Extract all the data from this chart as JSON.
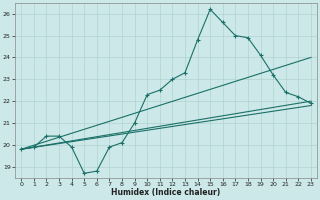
{
  "xlabel": "Humidex (Indice chaleur)",
  "xlim": [
    -0.5,
    23.5
  ],
  "ylim": [
    18.5,
    26.5
  ],
  "yticks": [
    19,
    20,
    21,
    22,
    23,
    24,
    25,
    26
  ],
  "xticks": [
    0,
    1,
    2,
    3,
    4,
    5,
    6,
    7,
    8,
    9,
    10,
    11,
    12,
    13,
    14,
    15,
    16,
    17,
    18,
    19,
    20,
    21,
    22,
    23
  ],
  "background_color": "#cce8e8",
  "grid_color": "#aacccc",
  "line_color": "#1a7068",
  "jagged_x": [
    0,
    1,
    2,
    3,
    4,
    5,
    6,
    7,
    8,
    9,
    10,
    11,
    12,
    13,
    14,
    15,
    16,
    17,
    18,
    19,
    20,
    21,
    22,
    23
  ],
  "jagged_y": [
    19.8,
    19.9,
    20.4,
    20.4,
    19.9,
    18.7,
    18.8,
    19.9,
    20.1,
    21.0,
    22.3,
    22.5,
    23.0,
    23.3,
    24.8,
    26.2,
    25.6,
    25.0,
    24.9,
    24.1,
    23.2,
    22.4,
    22.2,
    21.9
  ],
  "trend1_x": [
    0,
    23
  ],
  "trend1_y": [
    19.8,
    24.0
  ],
  "trend2_x": [
    0,
    23
  ],
  "trend2_y": [
    19.8,
    22.0
  ],
  "trend3_x": [
    0,
    23
  ],
  "trend3_y": [
    19.8,
    21.8
  ]
}
